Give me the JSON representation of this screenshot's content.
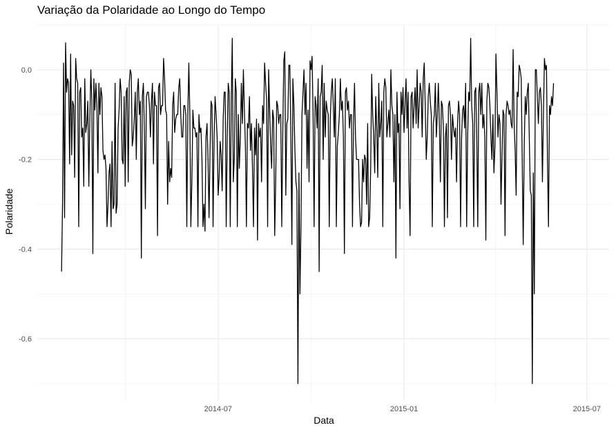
{
  "chart_data": {
    "type": "line",
    "title": "Variação da Polaridade ao Longo do Tempo",
    "xlabel": "Data",
    "ylabel": "Polaridade",
    "x_ticks": [
      "2014-07",
      "2015-01",
      "2015-07"
    ],
    "y_ticks": [
      "0.0",
      "-0.2",
      "-0.4",
      "-0.6"
    ],
    "xlim": [
      "2014-01-03",
      "2015-07-23"
    ],
    "ylim": [
      -0.7,
      0.1
    ],
    "grid": true,
    "legend": "none",
    "line_color": "#000000",
    "series": [
      {
        "x_start": "2014-01-27",
        "x_step_days": 1,
        "values": [
          -0.45,
          -0.3,
          0.015,
          -0.33,
          0.06,
          -0.05,
          -0.02,
          -0.03,
          -0.21,
          0.035,
          -0.19,
          -0.07,
          -0.08,
          -0.24,
          0.025,
          -0.02,
          -0.03,
          -0.35,
          -0.05,
          -0.04,
          -0.15,
          -0.13,
          -0.26,
          -0.02,
          -0.14,
          -0.12,
          -0.07,
          -0.26,
          -0.11,
          0.0,
          -0.07,
          -0.41,
          -0.02,
          -0.09,
          -0.03,
          -0.08,
          -0.23,
          -0.03,
          -0.1,
          -0.04,
          -0.06,
          -0.18,
          -0.2,
          -0.19,
          -0.22,
          -0.35,
          -0.3,
          -0.23,
          -0.21,
          -0.35,
          -0.16,
          -0.31,
          -0.3,
          -0.03,
          -0.32,
          -0.3,
          -0.13,
          -0.09,
          -0.02,
          -0.05,
          -0.2,
          -0.21,
          -0.06,
          -0.26,
          -0.05,
          -0.04,
          -0.25,
          -0.03,
          0.0,
          -0.01,
          -0.17,
          -0.15,
          -0.11,
          -0.05,
          -0.2,
          -0.05,
          -0.02,
          -0.1,
          -0.07,
          -0.42,
          -0.06,
          -0.03,
          -0.13,
          -0.31,
          -0.06,
          -0.05,
          -0.05,
          -0.08,
          -0.15,
          -0.07,
          -0.03,
          -0.21,
          -0.05,
          -0.08,
          -0.08,
          -0.37,
          -0.04,
          -0.03,
          -0.1,
          -0.08,
          -0.08,
          0.025,
          -0.02,
          -0.09,
          -0.1,
          -0.3,
          -0.16,
          -0.25,
          -0.22,
          -0.24,
          -0.08,
          -0.05,
          -0.14,
          -0.11,
          -0.1,
          -0.1,
          -0.04,
          -0.02,
          -0.1,
          -0.15,
          -0.15,
          -0.08,
          -0.08,
          -0.1,
          -0.35,
          -0.1,
          0.015,
          -0.1,
          -0.35,
          -0.25,
          -0.09,
          -0.13,
          -0.13,
          -0.15,
          -0.14,
          -0.35,
          -0.1,
          -0.14,
          -0.13,
          -0.2,
          -0.35,
          -0.3,
          -0.36,
          -0.15,
          -0.12,
          -0.2,
          -0.33,
          -0.18,
          -0.07,
          -0.08,
          -0.35,
          -0.15,
          -0.06,
          -0.1,
          -0.15,
          -0.28,
          -0.24,
          -0.16,
          -0.19,
          -0.27,
          -0.11,
          -0.05,
          -0.05,
          -0.35,
          -0.15,
          -0.03,
          -0.05,
          -0.35,
          -0.07,
          0.07,
          -0.25,
          -0.2,
          -0.02,
          -0.05,
          -0.35,
          -0.1,
          -0.22,
          -0.15,
          -0.03,
          -0.12,
          0.0,
          -0.09,
          -0.17,
          -0.35,
          -0.12,
          -0.13,
          -0.06,
          -0.18,
          -0.12,
          -0.22,
          -0.35,
          -0.13,
          -0.19,
          -0.11,
          -0.38,
          -0.12,
          -0.15,
          -0.13,
          -0.25,
          -0.08,
          -0.12,
          0.015,
          -0.03,
          -0.07,
          -0.35,
          0.0,
          -0.09,
          -0.17,
          -0.22,
          -0.09,
          -0.11,
          -0.37,
          -0.25,
          -0.07,
          -0.08,
          -0.12,
          -0.1,
          -0.1,
          -0.35,
          -0.14,
          0.02,
          0.04,
          -0.28,
          -0.12,
          -0.11,
          0.01,
          0.01,
          -0.15,
          -0.39,
          -0.02,
          -0.08,
          -0.18,
          -0.25,
          -0.27,
          -0.7,
          -0.23,
          -0.5,
          -0.35,
          -0.1,
          -0.05,
          0.0,
          -0.1,
          -0.03,
          -0.22,
          -0.09,
          -0.25,
          0.02,
          0.0,
          0.03,
          -0.1,
          -0.35,
          -0.06,
          -0.08,
          -0.13,
          -0.02,
          -0.45,
          -0.06,
          -0.05,
          0.01,
          -0.2,
          -0.03,
          -0.15,
          -0.07,
          -0.09,
          -0.1,
          -0.35,
          -0.11,
          -0.05,
          -0.02,
          -0.08,
          -0.15,
          -0.02,
          -0.35,
          -0.17,
          -0.14,
          -0.1,
          -0.02,
          -0.09,
          -0.07,
          -0.15,
          -0.41,
          -0.05,
          -0.04,
          -0.09,
          -0.07,
          -0.13,
          -0.1,
          -0.1,
          -0.35,
          -0.12,
          -0.03,
          -0.15,
          -0.2,
          -0.2,
          -0.2,
          -0.3,
          -0.35,
          -0.34,
          -0.2,
          -0.25,
          -0.19,
          -0.2,
          -0.3,
          -0.12,
          -0.35,
          -0.33,
          -0.22,
          -0.01,
          -0.1,
          -0.15,
          -0.23,
          -0.06,
          -0.13,
          -0.24,
          -0.03,
          -0.15,
          -0.12,
          -0.07,
          -0.35,
          -0.05,
          -0.02,
          -0.04,
          -0.15,
          -0.12,
          -0.09,
          -0.15,
          0.0,
          -0.08,
          -0.1,
          -0.25,
          -0.1,
          -0.42,
          -0.05,
          -0.14,
          -0.12,
          -0.31,
          -0.05,
          -0.1,
          -0.04,
          -0.14,
          -0.08,
          -0.02,
          -0.13,
          -0.05,
          -0.25,
          -0.37,
          -0.06,
          -0.05,
          -0.13,
          -0.08,
          -0.04,
          -0.12,
          0.0,
          -0.13,
          -0.08,
          -0.03,
          -0.05,
          -0.15,
          -0.02,
          0.015,
          -0.08,
          -0.2,
          -0.15,
          -0.06,
          -0.03,
          -0.07,
          -0.1,
          -0.35,
          -0.12,
          -0.1,
          -0.03,
          -0.15,
          -0.1,
          -0.03,
          -0.12,
          -0.25,
          -0.07,
          -0.08,
          -0.13,
          -0.35,
          -0.15,
          -0.12,
          -0.33,
          -0.08,
          -0.07,
          -0.1,
          -0.2,
          -0.1,
          -0.13,
          -0.15,
          -0.13,
          -0.25,
          -0.12,
          -0.07,
          -0.1,
          -0.35,
          -0.15,
          -0.09,
          -0.08,
          -0.13,
          -0.03,
          -0.35,
          -0.15,
          -0.05,
          -0.07,
          0.07,
          -0.08,
          -0.12,
          -0.35,
          -0.05,
          -0.04,
          -0.15,
          -0.35,
          -0.05,
          -0.03,
          -0.1,
          -0.03,
          -0.13,
          -0.1,
          -0.15,
          -0.38,
          -0.07,
          -0.03,
          -0.04,
          -0.08,
          -0.15,
          -0.2,
          -0.1,
          -0.23,
          -0.17,
          0.035,
          -0.05,
          -0.15,
          -0.1,
          -0.12,
          -0.3,
          -0.19,
          -0.09,
          -0.1,
          -0.37,
          -0.1,
          -0.07,
          -0.08,
          -0.1,
          -0.09,
          -0.12,
          -0.13,
          0.045,
          -0.12,
          -0.18,
          -0.28,
          -0.05,
          -0.06,
          0.01,
          0.0,
          -0.02,
          -0.2,
          -0.39,
          -0.17,
          -0.06,
          -0.1,
          -0.05,
          -0.03,
          -0.15,
          -0.27,
          -0.28,
          -0.7,
          -0.23,
          -0.5,
          0.0,
          0.0,
          -0.06,
          -0.12,
          -0.05,
          -0.04,
          -0.08,
          -0.25,
          -0.1,
          0.025,
          0.0,
          0.01,
          -0.2,
          -0.35,
          -0.08,
          -0.1,
          -0.06,
          -0.08,
          -0.03
        ]
      }
    ]
  }
}
